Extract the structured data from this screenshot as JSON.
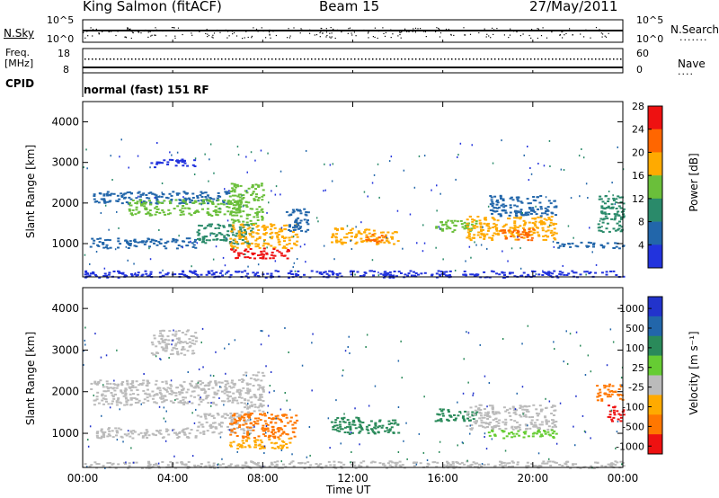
{
  "header": {
    "station": "King Salmon (fitACF)",
    "beam": "Beam 15",
    "date": "27/May/2011"
  },
  "nsky_panel": {
    "left_label": "N.Sky",
    "left_ticks": [
      "10^5",
      "10^0"
    ],
    "right_ticks": [
      "10^5",
      "10^0"
    ],
    "right_label": "N.Search"
  },
  "freq_panel": {
    "left_label_line1": "Freq.",
    "left_label_line2": "[MHz]",
    "left_ticks": [
      "18",
      "8"
    ],
    "right_ticks": [
      "60",
      "0"
    ],
    "right_label": "Nave"
  },
  "cpid_panel": {
    "label": "CPID",
    "value": "normal (fast) 151 RF"
  },
  "chart_data": [
    {
      "type": "heatmap",
      "quantity": "Power",
      "ylabel": "Slant Range [km]",
      "xlabel": "Time UT",
      "ylim": [
        180,
        4500
      ],
      "yticks": [
        "1000",
        "2000",
        "3000",
        "4000"
      ],
      "xticks": [
        "00:00",
        "04:00",
        "08:00",
        "12:00",
        "16:00",
        "20:00",
        "00:00"
      ],
      "colorbar_label": "Power [dB]",
      "colorbar_ticks": [
        "4",
        "8",
        "12",
        "16",
        "20",
        "24",
        "28"
      ],
      "colors": [
        "#2233dd",
        "#2266aa",
        "#2a8a6a",
        "#6abf3a",
        "#ffaa00",
        "#ff6600",
        "#ee1111"
      ],
      "regions": [
        {
          "t0": 0.3,
          "t1": 6.5,
          "r0": 2000,
          "r1": 2300,
          "level": 1
        },
        {
          "t0": 2.0,
          "t1": 7.0,
          "r0": 1700,
          "r1": 2100,
          "level": 3
        },
        {
          "t0": 0.3,
          "t1": 5.0,
          "r0": 900,
          "r1": 1150,
          "level": 1
        },
        {
          "t0": 5.0,
          "t1": 7.5,
          "r0": 1000,
          "r1": 1500,
          "level": 2
        },
        {
          "t0": 6.5,
          "t1": 8.0,
          "r0": 1500,
          "r1": 2500,
          "level": 3
        },
        {
          "t0": 6.5,
          "t1": 9.5,
          "r0": 900,
          "r1": 1500,
          "level": 4
        },
        {
          "t0": 6.5,
          "t1": 9.2,
          "r0": 650,
          "r1": 900,
          "level": 6
        },
        {
          "t0": 9.0,
          "t1": 10.0,
          "r0": 1300,
          "r1": 1900,
          "level": 1
        },
        {
          "t0": 11.0,
          "t1": 14.0,
          "r0": 1000,
          "r1": 1400,
          "level": 4
        },
        {
          "t0": 12.5,
          "t1": 13.5,
          "r0": 1050,
          "r1": 1250,
          "level": 5
        },
        {
          "t0": 15.6,
          "t1": 17.5,
          "r0": 1300,
          "r1": 1600,
          "level": 3
        },
        {
          "t0": 17.0,
          "t1": 21.0,
          "r0": 1100,
          "r1": 1700,
          "level": 4
        },
        {
          "t0": 18.5,
          "t1": 20.0,
          "r0": 1100,
          "r1": 1400,
          "level": 5
        },
        {
          "t0": 18.0,
          "t1": 21.0,
          "r0": 1700,
          "r1": 2200,
          "level": 1
        },
        {
          "t0": 21.0,
          "t1": 24.0,
          "r0": 900,
          "r1": 1050,
          "level": 1
        },
        {
          "t0": 22.8,
          "t1": 24.0,
          "r0": 1300,
          "r1": 2200,
          "level": 2
        },
        {
          "t0": 0.0,
          "t1": 24.0,
          "r0": 180,
          "r1": 350,
          "level": 0
        },
        {
          "t0": 3.0,
          "t1": 5.0,
          "r0": 2900,
          "r1": 3100,
          "level": 0
        }
      ]
    },
    {
      "type": "heatmap",
      "quantity": "Velocity",
      "ylabel": "Slant Range [km]",
      "xlabel": "Time UT",
      "ylim": [
        180,
        4500
      ],
      "yticks": [
        "1000",
        "2000",
        "3000",
        "4000"
      ],
      "xticks": [
        "00:00",
        "04:00",
        "08:00",
        "12:00",
        "16:00",
        "20:00",
        "00:00"
      ],
      "colorbar_label": "Velocity [m s⁻¹]",
      "colorbar_ticks": [
        "1000",
        "500",
        "100",
        "25",
        "-25",
        "-100",
        "-500",
        "-1000"
      ],
      "colors": [
        "#2233cc",
        "#2266aa",
        "#2a8a5a",
        "#66cc33",
        "#bbbbbb",
        "#ffaa00",
        "#ff7700",
        "#ee1111"
      ],
      "regions": [
        {
          "t0": 0.3,
          "t1": 7.0,
          "r0": 1700,
          "r1": 2300,
          "level": 4
        },
        {
          "t0": 0.3,
          "t1": 5.0,
          "r0": 900,
          "r1": 1150,
          "level": 4
        },
        {
          "t0": 5.0,
          "t1": 7.5,
          "r0": 1000,
          "r1": 1500,
          "level": 4
        },
        {
          "t0": 6.5,
          "t1": 9.5,
          "r0": 900,
          "r1": 1500,
          "level": 6
        },
        {
          "t0": 6.5,
          "t1": 9.2,
          "r0": 650,
          "r1": 900,
          "level": 5
        },
        {
          "t0": 7.0,
          "t1": 8.0,
          "r0": 1500,
          "r1": 2500,
          "level": 4
        },
        {
          "t0": 11.0,
          "t1": 14.0,
          "r0": 1000,
          "r1": 1400,
          "level": 2
        },
        {
          "t0": 15.6,
          "t1": 17.5,
          "r0": 1300,
          "r1": 1600,
          "level": 2
        },
        {
          "t0": 17.0,
          "t1": 21.0,
          "r0": 1100,
          "r1": 1700,
          "level": 4
        },
        {
          "t0": 18.0,
          "t1": 21.0,
          "r0": 900,
          "r1": 1100,
          "level": 3
        },
        {
          "t0": 22.8,
          "t1": 24.0,
          "r0": 1800,
          "r1": 2200,
          "level": 6
        },
        {
          "t0": 23.3,
          "t1": 24.0,
          "r0": 1300,
          "r1": 1700,
          "level": 7
        },
        {
          "t0": 0.0,
          "t1": 24.0,
          "r0": 180,
          "r1": 350,
          "level": 4
        },
        {
          "t0": 3.0,
          "t1": 5.0,
          "r0": 2900,
          "r1": 3500,
          "level": 4
        }
      ]
    }
  ]
}
